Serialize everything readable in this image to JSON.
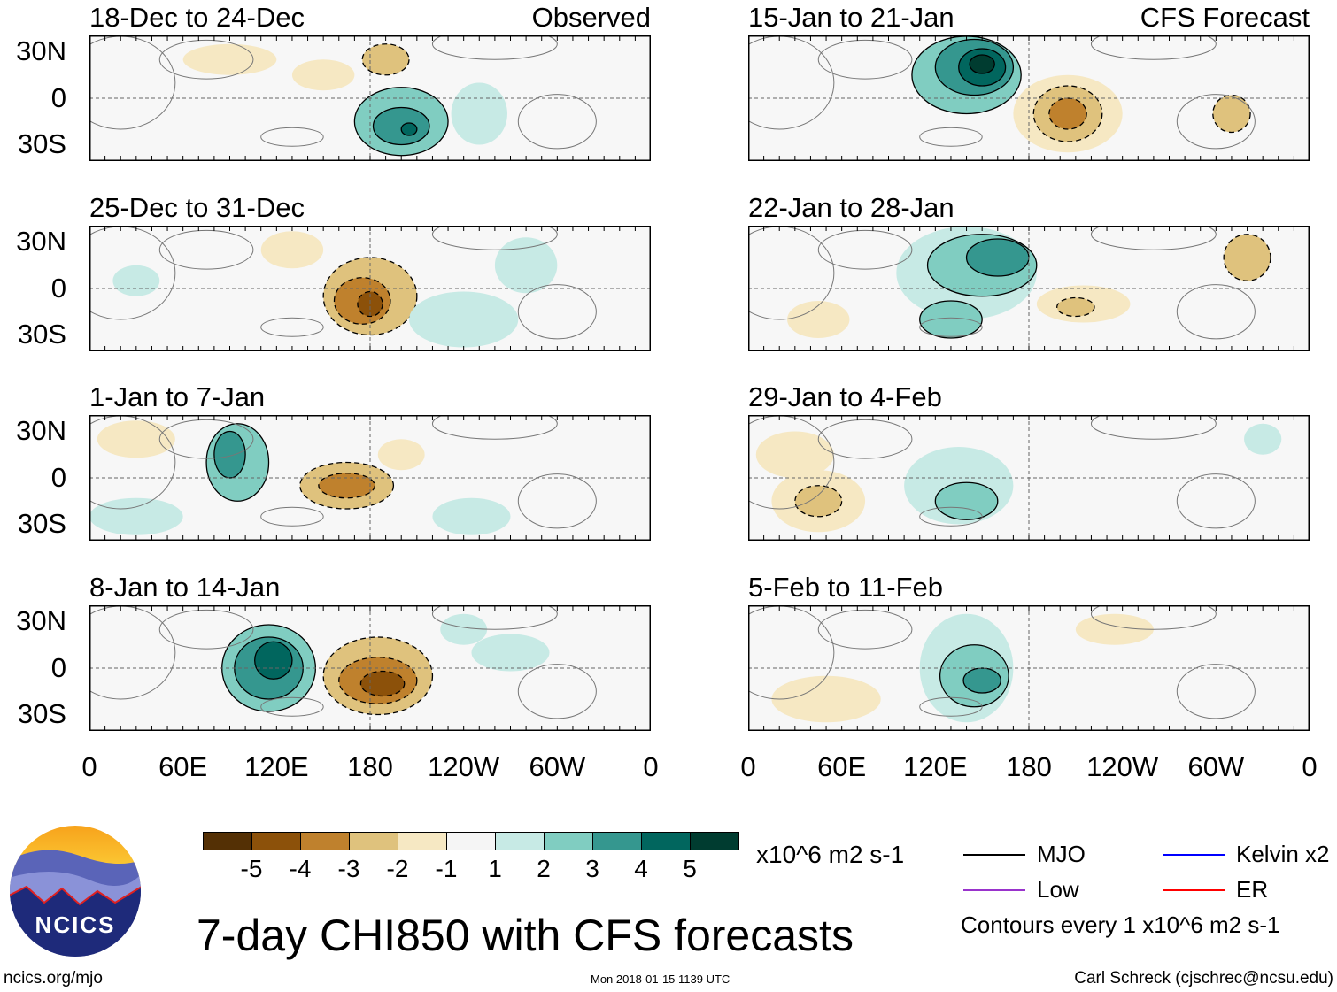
{
  "panels": [
    {
      "title": "18-Dec to 24-Dec",
      "label": "Observed",
      "col": 0,
      "row": 0,
      "features": [
        {
          "lon": 200,
          "lat": -15,
          "rx": 30,
          "ry": 22,
          "v": 2
        },
        {
          "lon": 200,
          "lat": -18,
          "rx": 18,
          "ry": 12,
          "v": 3
        },
        {
          "lon": 205,
          "lat": -20,
          "rx": 5,
          "ry": 4,
          "v": 4
        },
        {
          "lon": 250,
          "lat": -10,
          "rx": 18,
          "ry": 20,
          "v": 1
        },
        {
          "lon": 90,
          "lat": 25,
          "rx": 30,
          "ry": 10,
          "v": -1
        },
        {
          "lon": 190,
          "lat": 25,
          "rx": 15,
          "ry": 10,
          "v": -2
        },
        {
          "lon": 150,
          "lat": 15,
          "rx": 20,
          "ry": 10,
          "v": -1
        }
      ]
    },
    {
      "title": "25-Dec to 31-Dec",
      "label": "",
      "col": 0,
      "row": 1,
      "features": [
        {
          "lon": 180,
          "lat": -5,
          "rx": 30,
          "ry": 25,
          "v": -2
        },
        {
          "lon": 175,
          "lat": -8,
          "rx": 18,
          "ry": 15,
          "v": -3
        },
        {
          "lon": 180,
          "lat": -10,
          "rx": 8,
          "ry": 8,
          "v": -4
        },
        {
          "lon": 240,
          "lat": -20,
          "rx": 35,
          "ry": 18,
          "v": 1
        },
        {
          "lon": 280,
          "lat": 15,
          "rx": 20,
          "ry": 18,
          "v": 1
        },
        {
          "lon": 30,
          "lat": 5,
          "rx": 15,
          "ry": 10,
          "v": 1
        },
        {
          "lon": 130,
          "lat": 25,
          "rx": 20,
          "ry": 12,
          "v": -1
        }
      ]
    },
    {
      "title": "1-Jan to 7-Jan",
      "label": "",
      "col": 0,
      "row": 2,
      "features": [
        {
          "lon": 95,
          "lat": 10,
          "rx": 20,
          "ry": 25,
          "v": 2
        },
        {
          "lon": 90,
          "lat": 15,
          "rx": 10,
          "ry": 15,
          "v": 3
        },
        {
          "lon": 165,
          "lat": -5,
          "rx": 30,
          "ry": 15,
          "v": -2
        },
        {
          "lon": 165,
          "lat": -5,
          "rx": 18,
          "ry": 8,
          "v": -3
        },
        {
          "lon": 30,
          "lat": -25,
          "rx": 30,
          "ry": 12,
          "v": 1
        },
        {
          "lon": 245,
          "lat": -25,
          "rx": 25,
          "ry": 12,
          "v": 1
        },
        {
          "lon": 200,
          "lat": 15,
          "rx": 15,
          "ry": 10,
          "v": -1
        },
        {
          "lon": 30,
          "lat": 25,
          "rx": 25,
          "ry": 12,
          "v": -1
        }
      ]
    },
    {
      "title": "8-Jan to 14-Jan",
      "label": "",
      "col": 0,
      "row": 3,
      "features": [
        {
          "lon": 115,
          "lat": 0,
          "rx": 30,
          "ry": 28,
          "v": 2
        },
        {
          "lon": 115,
          "lat": 0,
          "rx": 22,
          "ry": 20,
          "v": 3
        },
        {
          "lon": 118,
          "lat": 5,
          "rx": 12,
          "ry": 12,
          "v": 4
        },
        {
          "lon": 185,
          "lat": -5,
          "rx": 35,
          "ry": 25,
          "v": -2
        },
        {
          "lon": 185,
          "lat": -8,
          "rx": 25,
          "ry": 15,
          "v": -3
        },
        {
          "lon": 188,
          "lat": -10,
          "rx": 14,
          "ry": 8,
          "v": -4
        },
        {
          "lon": 270,
          "lat": 10,
          "rx": 25,
          "ry": 12,
          "v": 1
        },
        {
          "lon": 240,
          "lat": 25,
          "rx": 15,
          "ry": 10,
          "v": 1
        }
      ]
    },
    {
      "title": "15-Jan to 21-Jan",
      "label": "CFS Forecast",
      "col": 1,
      "row": 0,
      "features": [
        {
          "lon": 140,
          "lat": 15,
          "rx": 35,
          "ry": 25,
          "v": 2
        },
        {
          "lon": 145,
          "lat": 20,
          "rx": 25,
          "ry": 18,
          "v": 3
        },
        {
          "lon": 150,
          "lat": 20,
          "rx": 15,
          "ry": 12,
          "v": 4
        },
        {
          "lon": 150,
          "lat": 22,
          "rx": 8,
          "ry": 6,
          "v": 5
        },
        {
          "lon": 205,
          "lat": -10,
          "rx": 35,
          "ry": 25,
          "v": -1
        },
        {
          "lon": 205,
          "lat": -10,
          "rx": 22,
          "ry": 18,
          "v": -2
        },
        {
          "lon": 205,
          "lat": -10,
          "rx": 12,
          "ry": 10,
          "v": -3
        },
        {
          "lon": 310,
          "lat": -10,
          "rx": 12,
          "ry": 12,
          "v": -2
        }
      ]
    },
    {
      "title": "22-Jan to 28-Jan",
      "label": "",
      "col": 1,
      "row": 1,
      "features": [
        {
          "lon": 140,
          "lat": 10,
          "rx": 45,
          "ry": 30,
          "v": 1
        },
        {
          "lon": 150,
          "lat": 15,
          "rx": 35,
          "ry": 20,
          "v": 2
        },
        {
          "lon": 160,
          "lat": 20,
          "rx": 20,
          "ry": 12,
          "v": 3
        },
        {
          "lon": 130,
          "lat": -20,
          "rx": 20,
          "ry": 12,
          "v": 2
        },
        {
          "lon": 215,
          "lat": -10,
          "rx": 30,
          "ry": 12,
          "v": -1
        },
        {
          "lon": 210,
          "lat": -12,
          "rx": 12,
          "ry": 6,
          "v": -2
        },
        {
          "lon": 320,
          "lat": 20,
          "rx": 15,
          "ry": 15,
          "v": -2
        },
        {
          "lon": 45,
          "lat": -20,
          "rx": 20,
          "ry": 12,
          "v": -1
        }
      ]
    },
    {
      "title": "29-Jan to 4-Feb",
      "label": "",
      "col": 1,
      "row": 2,
      "features": [
        {
          "lon": 135,
          "lat": -5,
          "rx": 35,
          "ry": 25,
          "v": 1
        },
        {
          "lon": 140,
          "lat": -15,
          "rx": 20,
          "ry": 12,
          "v": 2
        },
        {
          "lon": 45,
          "lat": -15,
          "rx": 30,
          "ry": 20,
          "v": -1
        },
        {
          "lon": 45,
          "lat": -15,
          "rx": 15,
          "ry": 10,
          "v": -2
        },
        {
          "lon": 30,
          "lat": 15,
          "rx": 25,
          "ry": 15,
          "v": -1
        },
        {
          "lon": 330,
          "lat": 25,
          "rx": 12,
          "ry": 10,
          "v": 1
        }
      ]
    },
    {
      "title": "5-Feb to 11-Feb",
      "label": "",
      "col": 1,
      "row": 3,
      "features": [
        {
          "lon": 140,
          "lat": 0,
          "rx": 30,
          "ry": 35,
          "v": 1
        },
        {
          "lon": 145,
          "lat": -5,
          "rx": 22,
          "ry": 20,
          "v": 2
        },
        {
          "lon": 150,
          "lat": -8,
          "rx": 12,
          "ry": 8,
          "v": 3
        },
        {
          "lon": 50,
          "lat": -20,
          "rx": 35,
          "ry": 15,
          "v": -1
        },
        {
          "lon": 235,
          "lat": 25,
          "rx": 25,
          "ry": 10,
          "v": -1
        }
      ]
    }
  ],
  "lat_labels": [
    "30N",
    "0",
    "30S"
  ],
  "lon_labels": [
    "0",
    "60E",
    "120E",
    "180",
    "120W",
    "60W",
    "0"
  ],
  "colorbar": {
    "colors": [
      "#543005",
      "#8c510a",
      "#bf812d",
      "#dfc27d",
      "#f6e8c3",
      "#f5f5f5",
      "#c7eae5",
      "#80cdc1",
      "#35978f",
      "#01665e",
      "#003c30"
    ],
    "labels": [
      "-5",
      "-4",
      "-3",
      "-2",
      "-1",
      "1",
      "2",
      "3",
      "4",
      "5"
    ],
    "units": "x10^6 m2 s-1"
  },
  "legend": {
    "items": [
      {
        "label": "MJO",
        "color": "#000000"
      },
      {
        "label": "Kelvin x2",
        "color": "#0000ff"
      },
      {
        "label": "Low",
        "color": "#9933cc"
      },
      {
        "label": "ER",
        "color": "#ff0000"
      }
    ],
    "note": "Contours every 1 x10^6 m2 s-1"
  },
  "title": "7-day CHI850 with CFS forecasts",
  "logo_text": "NCICS",
  "footer": {
    "left": "ncics.org/mjo",
    "center": "Mon 2018-01-15 1139 UTC",
    "right": "Carl Schreck (cjschrec@ncsu.edu)"
  }
}
